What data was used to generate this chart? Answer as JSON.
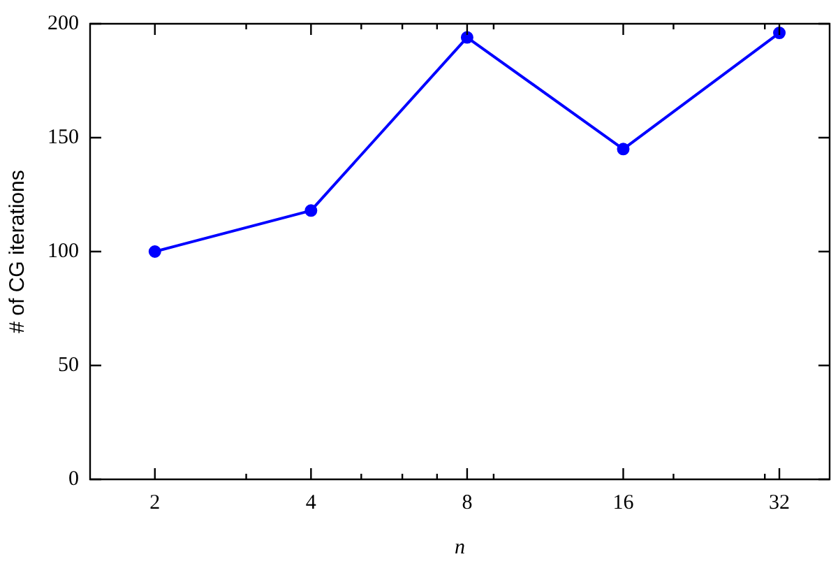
{
  "chart_data": {
    "type": "line",
    "xlabel": "n",
    "ylabel": "# of CG iterations",
    "x": [
      2,
      4,
      8,
      16,
      32
    ],
    "series": [
      {
        "color": "#0000ff",
        "values": [
          100,
          118,
          194,
          145,
          196
        ]
      }
    ],
    "log": "x",
    "xlim": [
      1.5,
      40
    ],
    "xticks": [
      2,
      {
        "value": 3,
        "label": null
      },
      4,
      {
        "value": 5,
        "label": null
      },
      {
        "value": 6,
        "label": null
      },
      {
        "value": 7,
        "label": null
      },
      8,
      {
        "value": 9,
        "label": null
      },
      16,
      {
        "value": 20,
        "label": null
      },
      {
        "value": 30,
        "label": null
      },
      32
    ],
    "ylim": [
      0,
      200
    ],
    "yticks": [
      0,
      50,
      100,
      150,
      200
    ],
    "grid": false,
    "legend": false,
    "marker": "circle",
    "line_style": "solid"
  }
}
